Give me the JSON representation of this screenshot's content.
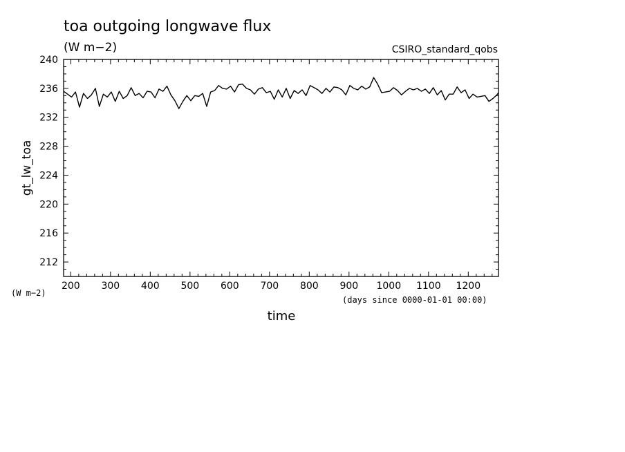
{
  "chart_data": {
    "type": "line",
    "title": "toa outgoing longwave flux",
    "subtitle": "(W m−2)",
    "dataset_label": "CSIRO_standard_qobs",
    "ylabel": "gt_lw_toa",
    "yunits": "(W m−2)",
    "xlabel": "time",
    "xunits": "(days since 0000-01-01 00:00)",
    "xlim": [
      182,
      1276
    ],
    "ylim": [
      210,
      240
    ],
    "xticks": [
      200,
      300,
      400,
      500,
      600,
      700,
      800,
      900,
      1000,
      1100,
      1200
    ],
    "yticks": [
      212,
      216,
      220,
      224,
      228,
      232,
      236,
      240
    ],
    "grid": false,
    "series": [
      {
        "color": "#000000",
        "x": [
          182,
          192,
          202,
          212,
          222,
          232,
          242,
          252,
          262,
          272,
          282,
          292,
          302,
          312,
          322,
          332,
          342,
          352,
          362,
          372,
          382,
          392,
          402,
          412,
          422,
          432,
          442,
          452,
          462,
          472,
          482,
          492,
          502,
          512,
          522,
          532,
          542,
          552,
          562,
          572,
          582,
          592,
          602,
          612,
          622,
          632,
          642,
          652,
          662,
          672,
          682,
          692,
          702,
          712,
          722,
          732,
          742,
          752,
          762,
          772,
          782,
          792,
          802,
          812,
          822,
          832,
          842,
          852,
          862,
          872,
          882,
          892,
          902,
          912,
          922,
          932,
          942,
          952,
          962,
          972,
          982,
          992,
          1002,
          1012,
          1022,
          1032,
          1042,
          1052,
          1062,
          1072,
          1082,
          1092,
          1102,
          1112,
          1122,
          1132,
          1142,
          1152,
          1162,
          1172,
          1182,
          1192,
          1202,
          1212,
          1222,
          1232,
          1242,
          1252,
          1262,
          1272,
          1276
        ],
        "y": [
          235.6,
          235.2,
          234.8,
          235.5,
          233.4,
          235.3,
          234.6,
          235.1,
          236.0,
          233.5,
          235.2,
          234.8,
          235.5,
          234.2,
          235.6,
          234.6,
          235.0,
          236.1,
          235.0,
          235.3,
          234.7,
          235.6,
          235.5,
          234.7,
          235.9,
          235.6,
          236.3,
          235.1,
          234.3,
          233.2,
          234.2,
          235.0,
          234.3,
          235.0,
          234.9,
          235.3,
          233.5,
          235.5,
          235.7,
          236.4,
          236.0,
          235.9,
          236.3,
          235.5,
          236.5,
          236.6,
          236.0,
          235.8,
          235.2,
          235.9,
          236.1,
          235.4,
          235.6,
          234.5,
          235.8,
          234.8,
          236.0,
          234.6,
          235.7,
          235.3,
          235.8,
          235.0,
          236.4,
          236.1,
          235.8,
          235.3,
          236.0,
          235.5,
          236.2,
          236.1,
          235.8,
          235.1,
          236.4,
          236.0,
          235.8,
          236.3,
          235.9,
          236.2,
          237.5,
          236.6,
          235.4,
          235.5,
          235.6,
          236.1,
          235.7,
          235.1,
          235.6,
          236.0,
          235.8,
          236.0,
          235.6,
          235.9,
          235.3,
          236.1,
          235.1,
          235.7,
          234.4,
          235.2,
          235.2,
          236.2,
          235.4,
          235.8,
          234.6,
          235.2,
          234.8,
          234.9,
          235.0,
          234.2,
          234.6,
          235.1,
          235.4
        ]
      }
    ]
  }
}
